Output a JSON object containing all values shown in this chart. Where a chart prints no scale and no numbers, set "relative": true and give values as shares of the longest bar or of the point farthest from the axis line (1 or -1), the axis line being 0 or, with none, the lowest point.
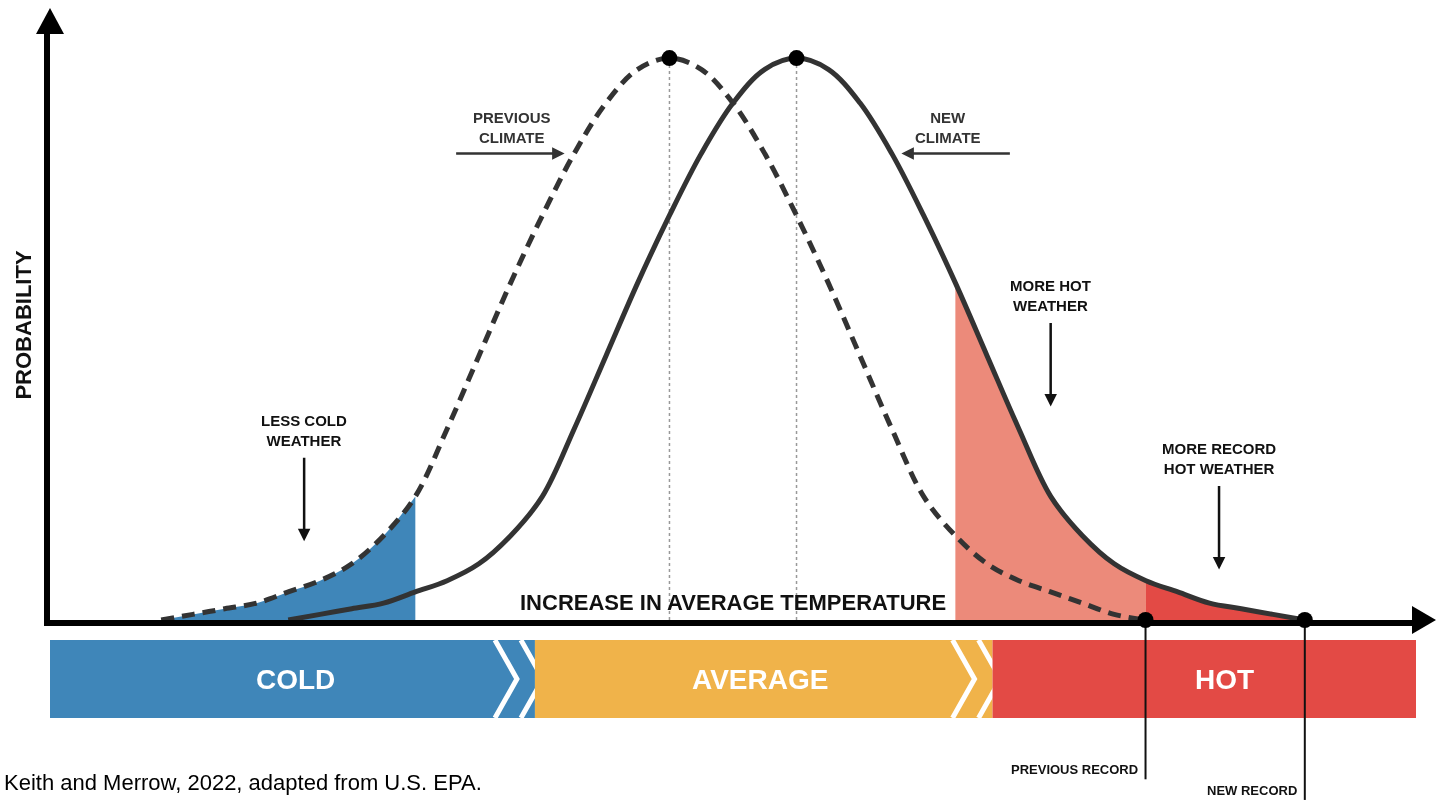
{
  "chart_data": {
    "type": "line",
    "relative": true,
    "xlabel": "INCREASE IN AVERAGE TEMPERATURE",
    "ylabel": "PROBABILITY",
    "categories": [
      null,
      null,
      null,
      null,
      null,
      null,
      null,
      null,
      null,
      null,
      null,
      null,
      null,
      null,
      null,
      null,
      null,
      null,
      null,
      null,
      null,
      null,
      null,
      null,
      null,
      null,
      null,
      null,
      null,
      null,
      null,
      null,
      null,
      null,
      null,
      null,
      null,
      null,
      null,
      null,
      null,
      null,
      null
    ],
    "series": [
      {
        "type": "area",
        "color": "#3f86b9",
        "values": [
          null,
          null,
          null,
          0,
          0.01,
          0.02,
          0.03,
          0.05,
          0.07,
          0.1,
          0.15,
          0.22,
          null,
          null,
          null,
          null,
          null,
          null,
          null,
          null,
          null,
          null,
          null,
          null,
          null,
          null,
          null,
          null,
          null,
          null,
          null,
          null,
          null,
          null,
          null,
          null,
          null,
          null,
          null,
          null,
          null,
          null,
          null
        ]
      },
      {
        "type": "area",
        "color": "#ec8a7a",
        "values": [
          null,
          null,
          null,
          null,
          null,
          null,
          null,
          null,
          null,
          null,
          null,
          null,
          null,
          null,
          null,
          null,
          null,
          null,
          null,
          null,
          null,
          null,
          null,
          null,
          null,
          null,
          null,
          null,
          0.6,
          0.47,
          0.34,
          0.22,
          0.15,
          0.1,
          0.07,
          null,
          null,
          null,
          null,
          null,
          null,
          null,
          null
        ]
      },
      {
        "type": "area",
        "color": "#e34a45",
        "values": [
          null,
          null,
          null,
          null,
          null,
          null,
          null,
          null,
          null,
          null,
          null,
          null,
          null,
          null,
          null,
          null,
          null,
          null,
          null,
          null,
          null,
          null,
          null,
          null,
          null,
          null,
          null,
          null,
          null,
          null,
          null,
          null,
          null,
          null,
          0.07,
          0.05,
          0.03,
          0.02,
          0.01,
          0,
          null,
          null,
          null
        ]
      },
      {
        "name": "PREVIOUS CLIMATE",
        "color": "#333333",
        "line_style": "dashed",
        "values": [
          null,
          null,
          null,
          0,
          0.01,
          0.02,
          0.03,
          0.05,
          0.07,
          0.1,
          0.15,
          0.22,
          0.34,
          0.47,
          0.6,
          0.72,
          0.83,
          0.92,
          0.98,
          1,
          0.98,
          0.92,
          0.83,
          0.72,
          0.6,
          0.47,
          0.34,
          0.22,
          0.15,
          0.1,
          0.07,
          0.05,
          0.03,
          0.01,
          0,
          null,
          null,
          null,
          null,
          null,
          null,
          null,
          null
        ]
      },
      {
        "name": "NEW CLIMATE",
        "color": "#333333",
        "line_style": "solid",
        "values": [
          null,
          null,
          null,
          null,
          null,
          null,
          null,
          0,
          0.01,
          0.02,
          0.03,
          0.05,
          0.07,
          0.1,
          0.15,
          0.22,
          0.34,
          0.47,
          0.6,
          0.72,
          0.83,
          0.92,
          0.98,
          1,
          0.98,
          0.92,
          0.83,
          0.72,
          0.6,
          0.47,
          0.34,
          0.22,
          0.15,
          0.1,
          0.07,
          0.05,
          0.03,
          0.02,
          0.01,
          0,
          null,
          null,
          null
        ]
      }
    ],
    "annotations": [
      "LESS COLD WEATHER",
      "MORE HOT WEATHER",
      "MORE RECORD HOT WEATHER",
      "COLD",
      "AVERAGE",
      "HOT",
      "PREVIOUS RECORD",
      "NEW RECORD",
      "Keith and Merrow, 2022, adapted from U.S. EPA."
    ]
  }
}
